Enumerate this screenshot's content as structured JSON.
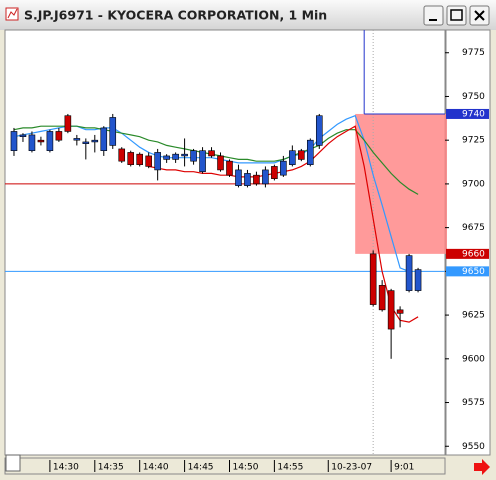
{
  "chart_data": {
    "type": "candlestick",
    "title": "S.JP.J6971 - KYOCERA CORPORATION, 1 Min",
    "up_color": "#2255cc",
    "down_color": "#cc0000",
    "open": [
      9719,
      9727,
      9719,
      9725,
      9719,
      9730,
      9739,
      9725,
      9723,
      9724,
      9719,
      9722,
      9720,
      9718,
      9717,
      9716,
      9708,
      9714,
      9714,
      9716,
      9713,
      9707,
      9719,
      9716,
      9713,
      9699,
      9699,
      9705,
      9700,
      9710,
      9705,
      9711,
      9719,
      9711,
      9722,
      null,
      null,
      null,
      null,
      null,
      9660,
      9642,
      9639,
      9628,
      9639,
      9639
    ],
    "high": [
      9732,
      9729,
      9730,
      9727,
      9731,
      9732,
      9740,
      9728,
      9726,
      9728,
      9733,
      9740,
      9721,
      9719,
      9718,
      9718,
      9720,
      9717,
      9718,
      9726,
      9720,
      9721,
      9721,
      9718,
      9714,
      9711,
      9708,
      9707,
      9710,
      9711,
      9716,
      9722,
      9720,
      9726,
      9740,
      null,
      null,
      null,
      null,
      null,
      9662,
      9645,
      9640,
      9630,
      9660,
      9652
    ],
    "low": [
      9716,
      9724,
      9718,
      9722,
      9718,
      9724,
      9729,
      9722,
      9714,
      9718,
      9716,
      9720,
      9712,
      9710,
      9710,
      9709,
      9702,
      9712,
      9712,
      9710,
      9711,
      9706,
      9715,
      9707,
      9704,
      9698,
      9698,
      9699,
      9698,
      9702,
      9704,
      9710,
      9713,
      9710,
      9720,
      null,
      null,
      null,
      null,
      null,
      9630,
      9627,
      9600,
      9618,
      9638,
      9638
    ],
    "close": [
      9730,
      9728,
      9728,
      9724,
      9730,
      9725,
      9730,
      9726,
      9724,
      9725,
      9732,
      9738,
      9713,
      9711,
      9711,
      9710,
      9718,
      9716,
      9717,
      9717,
      9719,
      9719,
      9716,
      9708,
      9705,
      9708,
      9706,
      9700,
      9708,
      9703,
      9713,
      9719,
      9714,
      9725,
      9739,
      null,
      null,
      null,
      null,
      null,
      9631,
      9628,
      9617,
      9626,
      9659,
      9651
    ],
    "series": [
      {
        "color": "#3399ff",
        "values": [
          9727,
          9728,
          9729,
          9730,
          9731,
          9732,
          9733,
          9733,
          9731,
          9731,
          9732,
          9732,
          9729,
          9725,
          9721,
          9718,
          9716,
          9715,
          9715,
          9715,
          9715,
          9715,
          9715,
          9714,
          9713,
          9712,
          9712,
          9712,
          9712,
          9712,
          9714,
          9716,
          9717,
          9720,
          9726,
          9730,
          9734,
          9737,
          9739,
          9725,
          9705,
          9688,
          9670,
          9652,
          9650,
          null
        ]
      },
      {
        "color": "#2a8a2a",
        "values": [
          9731,
          9732,
          9732,
          9733,
          9733,
          9733,
          9733,
          9733,
          9732,
          9732,
          9731,
          9730,
          9729,
          9728,
          9727,
          9725,
          9724,
          9722,
          9721,
          9720,
          9719,
          9718,
          9717,
          9716,
          9715,
          9714,
          9714,
          9713,
          9713,
          9713,
          9714,
          9716,
          9718,
          9720,
          9722,
          9726,
          9729,
          9731,
          9731,
          9725,
          9718,
          9712,
          9706,
          9701,
          9697,
          9694
        ]
      },
      {
        "color": "#dd0000",
        "values": [
          null,
          null,
          null,
          null,
          null,
          null,
          null,
          null,
          null,
          null,
          null,
          null,
          null,
          null,
          null,
          9710,
          9709,
          9708,
          9708,
          9707,
          9707,
          9706,
          9706,
          9705,
          9705,
          9704,
          9704,
          9704,
          9705,
          9706,
          9707,
          9708,
          9710,
          9713,
          9718,
          9723,
          9727,
          9730,
          9733,
          9710,
          9680,
          9650,
          9630,
          9622,
          9621,
          9624
        ]
      }
    ],
    "levels": [
      {
        "value": 9700,
        "color": "#cc0000",
        "end": 38,
        "tag": false
      },
      {
        "value": 9740,
        "color": "#2233cc",
        "start": 39,
        "tag": true
      },
      {
        "value": 9660,
        "color": "#cc0000",
        "line": false,
        "tag": true
      },
      {
        "value": 9650,
        "color": "#3399ff",
        "tag": true
      }
    ],
    "zone": {
      "low": 9660,
      "high": 9740,
      "start": 38,
      "color": "#ff8888"
    },
    "session_break": 40,
    "xlim": [
      -1,
      48
    ],
    "xticks": [
      {
        "value": 4,
        "label": "14:30"
      },
      {
        "value": 9,
        "label": "14:35"
      },
      {
        "value": 14,
        "label": "14:40"
      },
      {
        "value": 19,
        "label": "14:45"
      },
      {
        "value": 24,
        "label": "14:50"
      },
      {
        "value": 29,
        "label": "14:55"
      },
      {
        "value": 35,
        "label": "10-23-07"
      },
      {
        "value": 42,
        "label": "9:01"
      }
    ],
    "ylim": [
      9545,
      9788
    ],
    "yticks": [
      9550,
      9575,
      9600,
      9625,
      9650,
      9675,
      9700,
      9725,
      9750,
      9775
    ]
  }
}
